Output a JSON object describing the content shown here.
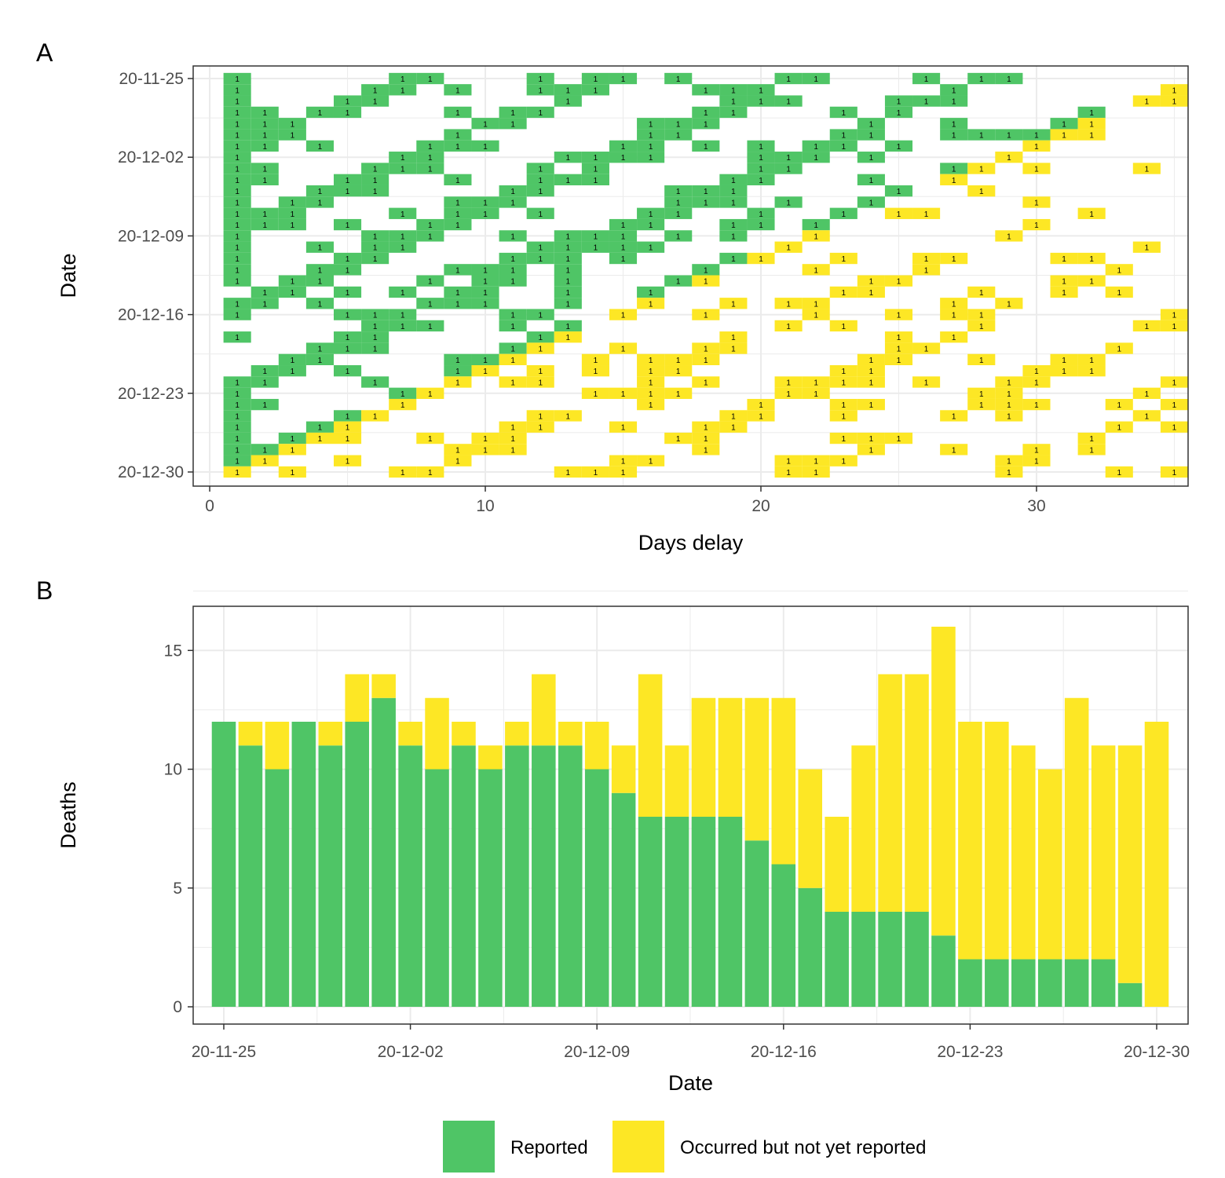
{
  "colors": {
    "reported": "#4fc566",
    "not_yet_reported": "#fde725",
    "grid": "#ebebeb",
    "frame": "#333333"
  },
  "legend": {
    "items": [
      {
        "key": "reported",
        "label": "Reported"
      },
      {
        "key": "not_yet_reported",
        "label": "Occurred but not yet reported"
      }
    ]
  },
  "chart_data": [
    {
      "panel": "A",
      "type": "heatmap",
      "xlabel": "Days delay",
      "ylabel": "Date",
      "xlim": [
        -0.6,
        35.5
      ],
      "ylim_dates": [
        "20-11-25",
        "20-12-30"
      ],
      "x_ticks": [
        0,
        10,
        20,
        30
      ],
      "y_ticks": [
        "20-11-25",
        "20-12-02",
        "20-12-09",
        "20-12-16",
        "20-12-23",
        "20-12-30"
      ],
      "cell_label": "1",
      "value_legend": [
        "reported",
        "not_yet_reported"
      ]
    },
    {
      "panel": "B",
      "type": "bar",
      "stacked": true,
      "xlabel": "Date",
      "ylabel": "Deaths",
      "ylim": [
        0,
        16.5
      ],
      "y_ticks": [
        0,
        5,
        10,
        15
      ],
      "x_ticks": [
        "20-11-25",
        "20-12-02",
        "20-12-09",
        "20-12-16",
        "20-12-23",
        "20-12-30"
      ],
      "categories": [
        "20-11-25",
        "20-11-26",
        "20-11-27",
        "20-11-28",
        "20-11-29",
        "20-11-30",
        "20-12-01",
        "20-12-02",
        "20-12-03",
        "20-12-04",
        "20-12-05",
        "20-12-06",
        "20-12-07",
        "20-12-08",
        "20-12-09",
        "20-12-10",
        "20-12-11",
        "20-12-12",
        "20-12-13",
        "20-12-14",
        "20-12-15",
        "20-12-16",
        "20-12-17",
        "20-12-18",
        "20-12-19",
        "20-12-20",
        "20-12-21",
        "20-12-22",
        "20-12-23",
        "20-12-24",
        "20-12-25",
        "20-12-26",
        "20-12-27",
        "20-12-28",
        "20-12-29",
        "20-12-30"
      ],
      "series": [
        {
          "key": "reported",
          "values": [
            12,
            11,
            10,
            12,
            11,
            12,
            13,
            11,
            10,
            11,
            10,
            11,
            11,
            11,
            10,
            9,
            8,
            8,
            8,
            8,
            7,
            6,
            5,
            4,
            4,
            4,
            4,
            3,
            2,
            2,
            2,
            2,
            2,
            2,
            1,
            0
          ]
        },
        {
          "key": "not_yet_reported",
          "values": [
            0,
            1,
            2,
            0,
            1,
            2,
            1,
            1,
            3,
            1,
            1,
            1,
            3,
            1,
            2,
            2,
            6,
            3,
            5,
            5,
            6,
            7,
            5,
            4,
            7,
            10,
            10,
            13,
            10,
            10,
            9,
            8,
            11,
            9,
            10,
            12
          ]
        }
      ]
    }
  ]
}
